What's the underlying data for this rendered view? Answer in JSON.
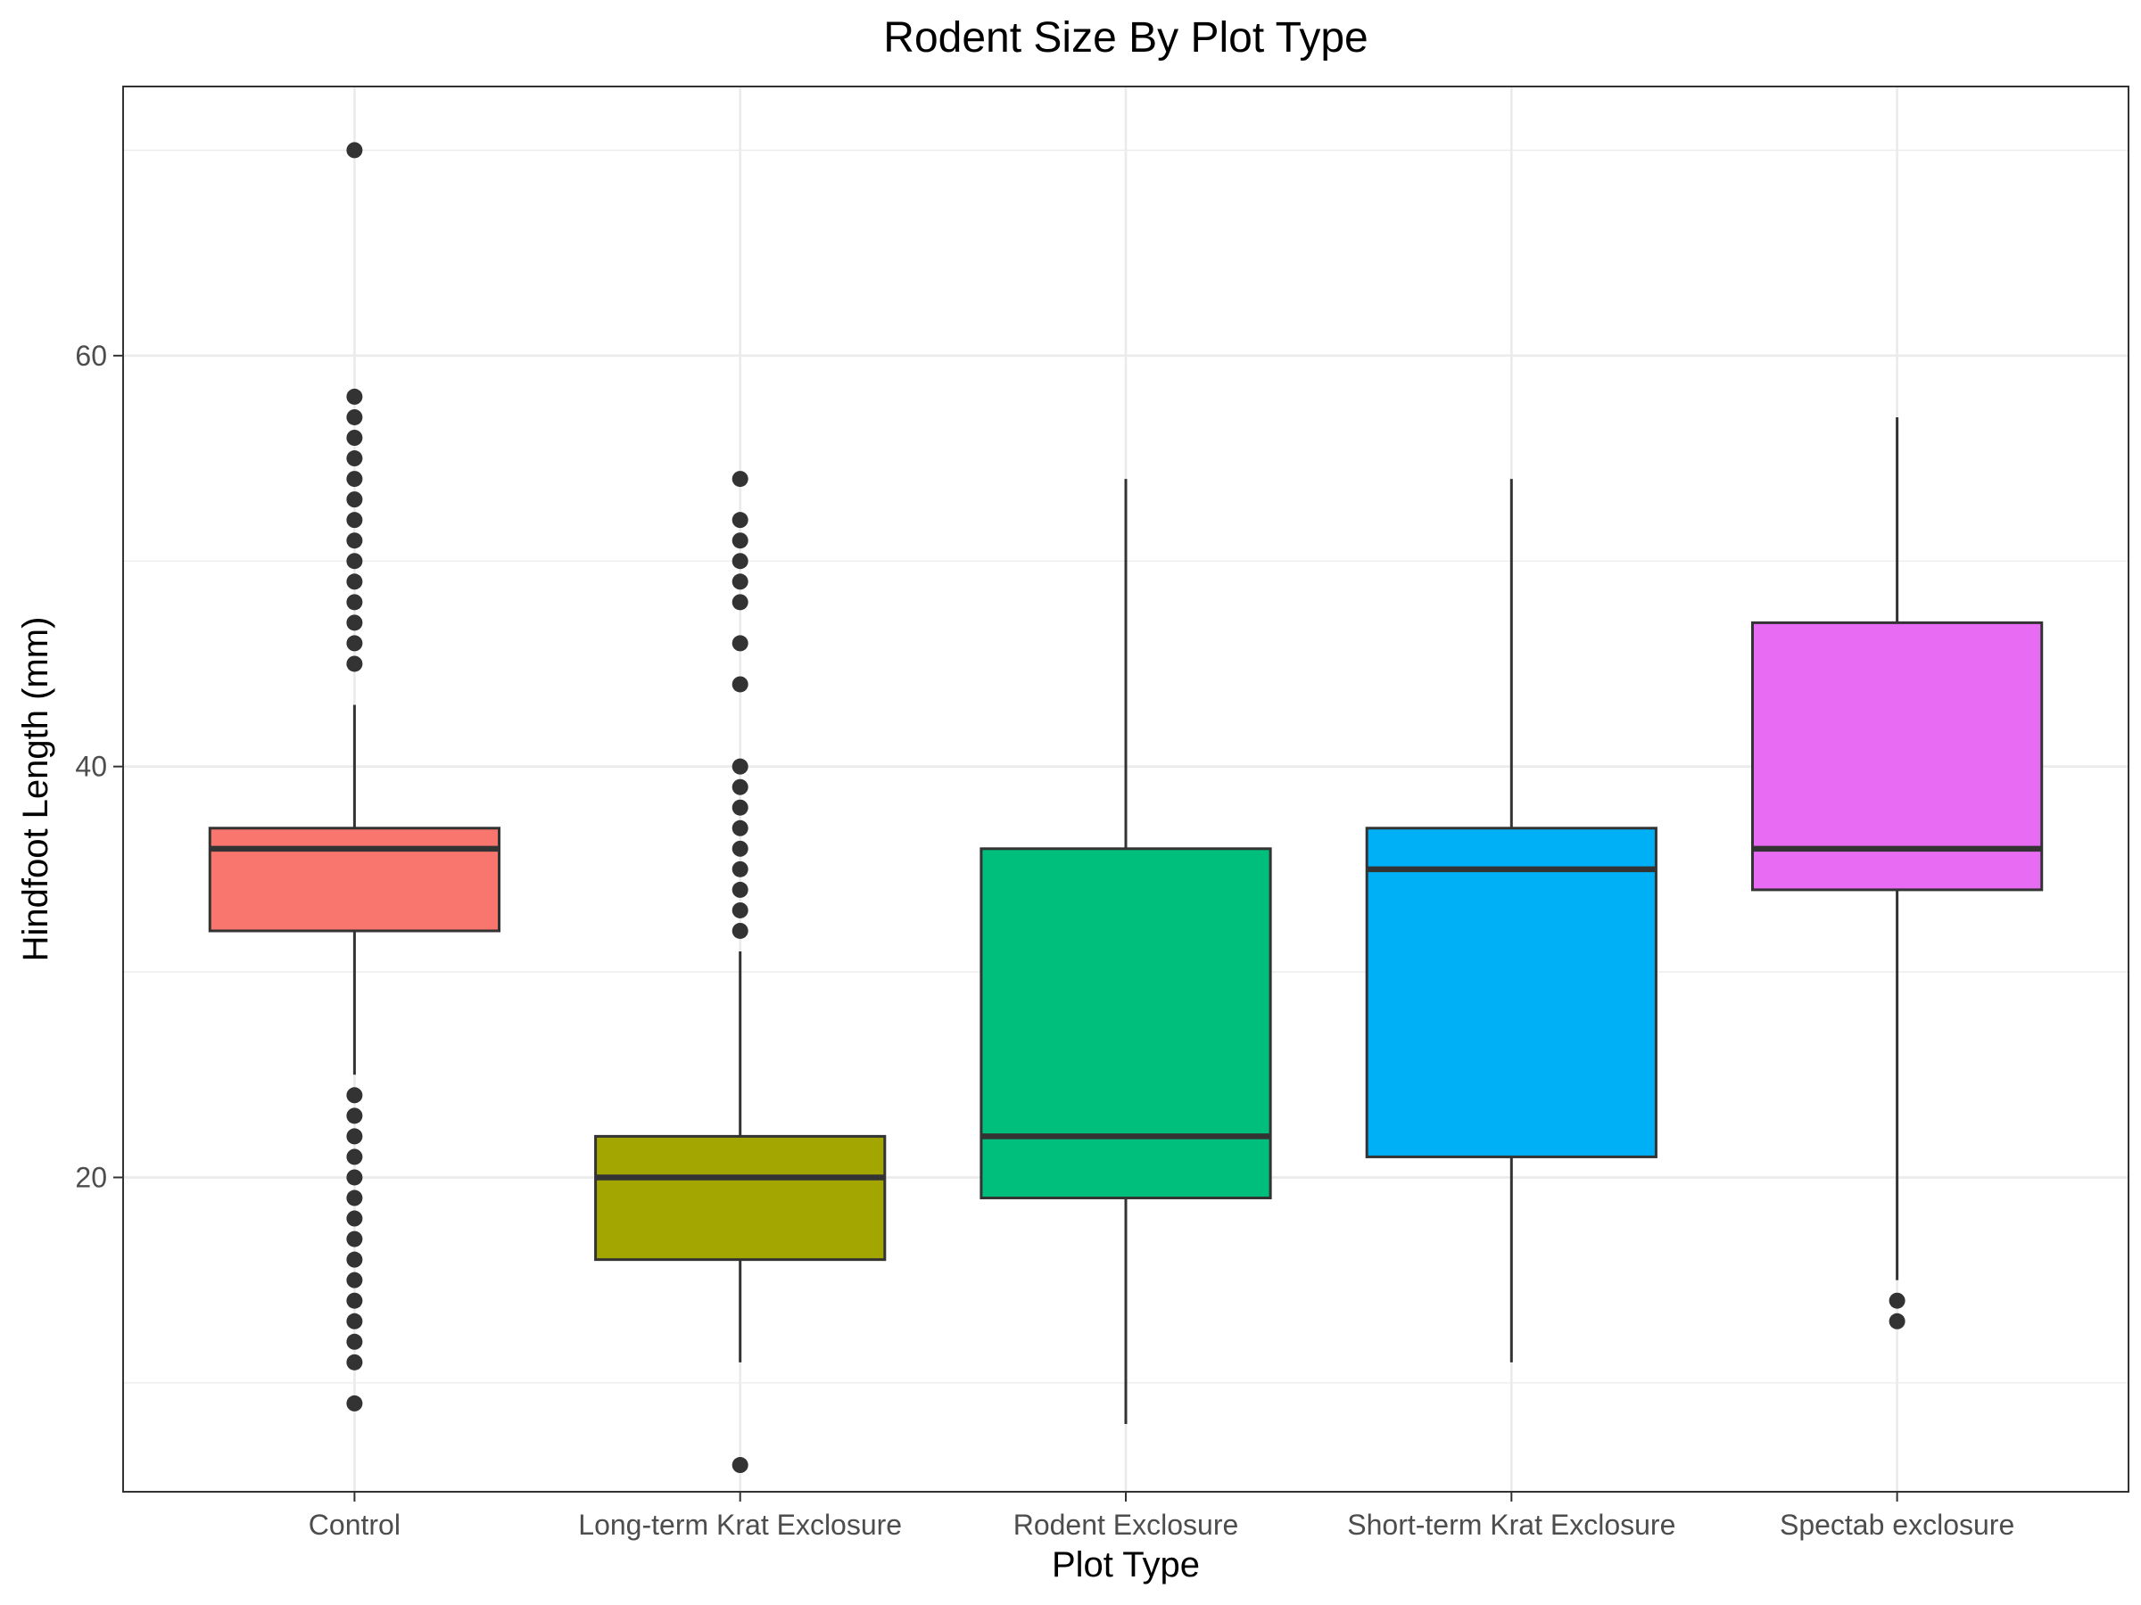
{
  "chart_data": {
    "type": "boxplot",
    "title": "Rodent Size By Plot Type",
    "xlabel": "Plot Type",
    "ylabel": "Hindfoot Length (mm)",
    "ylim": [
      4.7,
      73.1
    ],
    "yticks": [
      20,
      40,
      60
    ],
    "grid": true,
    "categories": [
      "Control",
      "Long-term Krat Exclosure",
      "Rodent Exclosure",
      "Short-term Krat Exclosure",
      "Spectab exclosure"
    ],
    "boxes": [
      {
        "category": "Control",
        "color": "#F8766D",
        "q1": 32,
        "median": 36,
        "q3": 37,
        "whisker_low": 25,
        "whisker_high": 43,
        "outliers": [
          70,
          58,
          57,
          56,
          55,
          54,
          53,
          52,
          51,
          50,
          49,
          48,
          47,
          46,
          45,
          24,
          23,
          22,
          21,
          20,
          19,
          18,
          17,
          16,
          15,
          14,
          13,
          12,
          11,
          9
        ]
      },
      {
        "category": "Long-term Krat Exclosure",
        "color": "#A3A500",
        "q1": 16,
        "median": 20,
        "q3": 22,
        "whisker_low": 11,
        "whisker_high": 31,
        "outliers": [
          54,
          52,
          51,
          50,
          49,
          48,
          46,
          44,
          40,
          39,
          38,
          37,
          36,
          35,
          34,
          33,
          32,
          6
        ]
      },
      {
        "category": "Rodent Exclosure",
        "color": "#00BF7D",
        "q1": 19,
        "median": 22,
        "q3": 36,
        "whisker_low": 8,
        "whisker_high": 54,
        "outliers": []
      },
      {
        "category": "Short-term Krat Exclosure",
        "color": "#00B0F6",
        "q1": 21,
        "median": 35,
        "q3": 37,
        "whisker_low": 11,
        "whisker_high": 54,
        "outliers": []
      },
      {
        "category": "Spectab exclosure",
        "color": "#E76BF3",
        "q1": 34,
        "median": 36,
        "q3": 47,
        "whisker_low": 15,
        "whisker_high": 57,
        "outliers": [
          14,
          13
        ]
      }
    ]
  }
}
